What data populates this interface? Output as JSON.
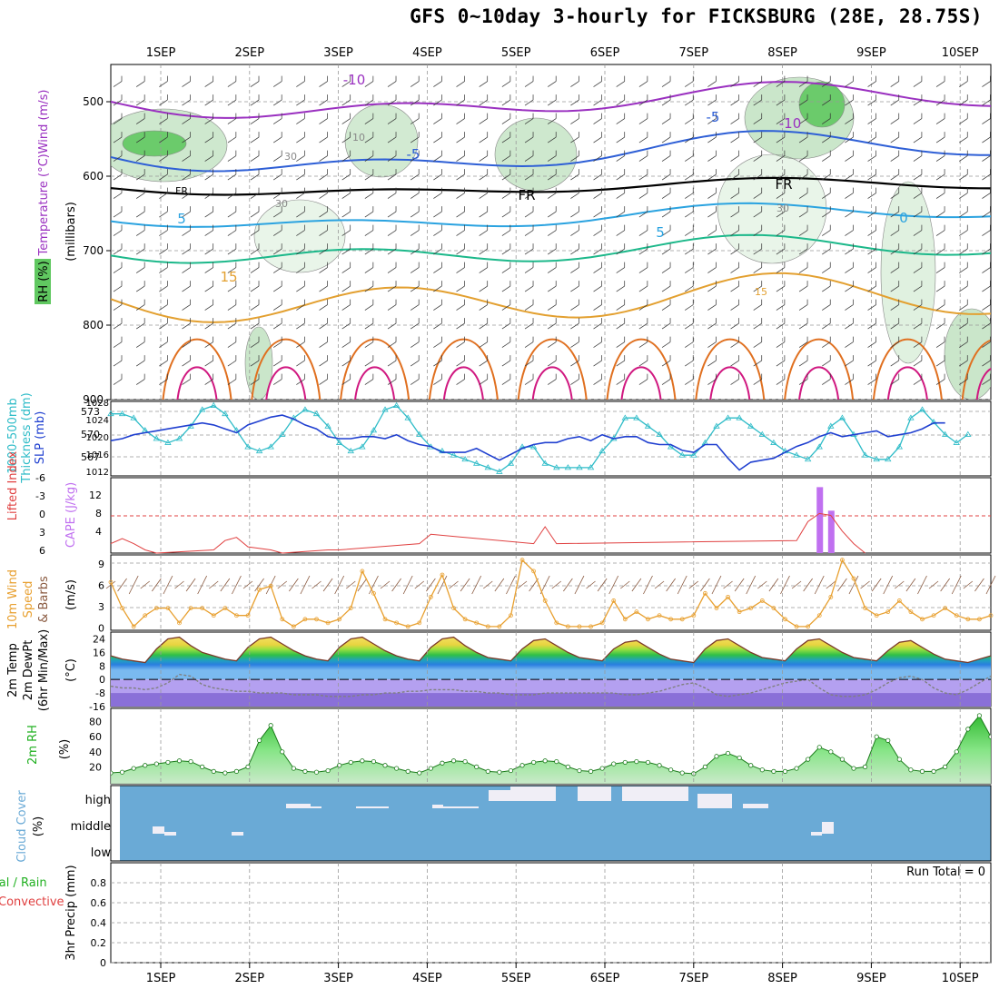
{
  "title": "GFS 0~10day 3-hourly for FICKSBURG (28E, 28.75S)",
  "dates": [
    "1SEP",
    "2SEP",
    "3SEP",
    "4SEP",
    "5SEP",
    "6SEP",
    "7SEP",
    "8SEP",
    "9SEP",
    "10SEP"
  ],
  "colors": {
    "rh_shade": "#a6d6a6",
    "temp_neg10": "#9a30c0",
    "temp_neg5": "#2e5fd6",
    "freezing": "#000000",
    "temp_5": "#2ba3e0",
    "temp_10": "#1cb88a",
    "temp_15": "#e3a030",
    "temp_20": "#e07020",
    "temp_25": "#d01880",
    "thickness": "#2fbcc8",
    "slp": "#2040d0",
    "lifted_index": "#e04040",
    "cape": "#c070f0",
    "wind10m": "#e8a030",
    "temp2m_fill": "#d8c040",
    "dewpt": "#808080",
    "rh2m": "#20b020",
    "cloud_bg": "#6aaad6",
    "cloud_clear": "#f0eef6"
  },
  "panels": {
    "upper": {
      "left_labels": [
        "Temperature (°C)Wind (m/s)",
        "(millibars)",
        "RH (%)"
      ],
      "y_ticks": [
        "500",
        "600",
        "700",
        "800",
        "900"
      ],
      "contour_labels": [
        "-10",
        "-10",
        "-5",
        "-5",
        "FR",
        "FR",
        "FR",
        "5",
        "5",
        "0",
        "15",
        "15",
        "30",
        "30",
        "10",
        "30"
      ]
    },
    "thickness": {
      "left_labels": [
        "1000-500mb",
        "Thickness (dm)",
        "SLP (mb)"
      ],
      "left_ticks": [
        "573",
        "570",
        "567"
      ],
      "right_ticks": [
        "1028",
        "1024",
        "1020",
        "1016",
        "1012"
      ]
    },
    "cape": {
      "left_labels": [
        "Lifted Index",
        "CAPE (J/kg)"
      ],
      "left_ticks": [
        "-6",
        "-3",
        "0",
        "3",
        "6"
      ],
      "right_ticks": [
        "12",
        "8",
        "4"
      ]
    },
    "wind": {
      "left_labels": [
        "10m Wind",
        "Speed",
        "& Barbs",
        "(m/s)"
      ],
      "ticks": [
        "9",
        "6",
        "3",
        "0"
      ]
    },
    "temp": {
      "left_labels": [
        "2m Temp",
        "2m DewPt",
        "(6hr Min/Max)",
        "(°C)"
      ],
      "ticks": [
        "24",
        "16",
        "8",
        "0",
        "-8",
        "-16"
      ]
    },
    "rh": {
      "left_labels": [
        "2m RH",
        "(%)"
      ],
      "ticks": [
        "80",
        "60",
        "40",
        "20"
      ]
    },
    "cloud": {
      "left_labels": [
        "Cloud Cover",
        "(%)"
      ],
      "levels": [
        "high",
        "middle",
        "low"
      ]
    },
    "precip": {
      "left_labels": [
        "Total / Rain",
        "Convective",
        "3hr Precip (mm)"
      ],
      "ticks": [
        "0.8",
        "0.6",
        "0.4",
        "0.2",
        "0"
      ],
      "run_total": "Run Total = 0"
    }
  },
  "chart_data": [
    {
      "type": "line",
      "name": "2m Temp",
      "x": "3-hourly steps from 31 Aug 12Z",
      "values": [
        14,
        12,
        11,
        10,
        18,
        24,
        25,
        20,
        16,
        14,
        12,
        11,
        19,
        24,
        25,
        21,
        17,
        14,
        12,
        11,
        19,
        24,
        25,
        21,
        17,
        14,
        12,
        11,
        19,
        24,
        25,
        20,
        16,
        13,
        12,
        11,
        18,
        23,
        24,
        20,
        16,
        13,
        12,
        11,
        18,
        22,
        23,
        19,
        15,
        12,
        11,
        10,
        18,
        23,
        24,
        20,
        16,
        13,
        12,
        11,
        18,
        23,
        24,
        20,
        16,
        13,
        12,
        11,
        17,
        22,
        23,
        19,
        15,
        12,
        11,
        10,
        12,
        14
      ],
      "ylim": [
        -16,
        28
      ]
    },
    {
      "type": "line",
      "name": "2m DewPt",
      "values": [
        -4,
        -5,
        -5,
        -6,
        -5,
        -2,
        3,
        2,
        -3,
        -5,
        -6,
        -7,
        -7,
        -8,
        -8,
        -8,
        -9,
        -9,
        -9,
        -10,
        -10,
        -10,
        -9,
        -9,
        -8,
        -8,
        -7,
        -7,
        -6,
        -6,
        -6,
        -7,
        -7,
        -8,
        -8,
        -9,
        -9,
        -9,
        -8,
        -8,
        -8,
        -8,
        -8,
        -8,
        -8,
        -9,
        -9,
        -8,
        -7,
        -5,
        -3,
        -2,
        -5,
        -9,
        -10,
        -9,
        -8,
        -6,
        -4,
        -2,
        -1,
        0,
        -5,
        -9,
        -10,
        -10,
        -9,
        -6,
        -2,
        1,
        2,
        0,
        -5,
        -8,
        -9,
        -6,
        -2,
        2
      ]
    },
    {
      "type": "line",
      "name": "2m RH",
      "values": [
        12,
        13,
        18,
        22,
        24,
        26,
        28,
        27,
        20,
        14,
        12,
        14,
        20,
        55,
        75,
        40,
        18,
        14,
        13,
        15,
        22,
        26,
        28,
        27,
        22,
        18,
        14,
        12,
        18,
        25,
        28,
        27,
        20,
        14,
        13,
        15,
        22,
        26,
        28,
        27,
        20,
        15,
        14,
        18,
        24,
        26,
        27,
        26,
        22,
        16,
        12,
        11,
        20,
        34,
        38,
        32,
        22,
        16,
        14,
        14,
        18,
        30,
        46,
        40,
        30,
        18,
        20,
        60,
        55,
        30,
        16,
        14,
        14,
        20,
        40,
        70,
        88,
        60
      ],
      "ylim": [
        0,
        100
      ]
    },
    {
      "type": "line",
      "name": "10m Wind Speed",
      "values": [
        6.5,
        3,
        0.5,
        2,
        3,
        3,
        1,
        3,
        3,
        2,
        3,
        2,
        2,
        5.5,
        6,
        1.5,
        0.5,
        1.5,
        1.5,
        1,
        1.5,
        3,
        8,
        5,
        1.5,
        1,
        0.5,
        1,
        4.5,
        7.5,
        3,
        1.5,
        1,
        0.5,
        0.5,
        2,
        9.5,
        8,
        4,
        1,
        0.5,
        0.5,
        0.5,
        1,
        4,
        1.5,
        2.5,
        1.5,
        2,
        1.5,
        1.5,
        2,
        5,
        3,
        4.5,
        2.5,
        3,
        4,
        3,
        1.5,
        0.5,
        0.5,
        2,
        4.5,
        9.5,
        7,
        3,
        2,
        2.5,
        4,
        2.5,
        1.5,
        2,
        3,
        2,
        1.5,
        1.5,
        2
      ],
      "ylim": [
        0,
        10
      ]
    },
    {
      "type": "line",
      "name": "1000-500mb Thickness",
      "values": [
        572.5,
        572.5,
        572,
        570.5,
        569.5,
        569,
        569.5,
        571,
        573,
        573.5,
        572.5,
        570.5,
        568.5,
        568,
        568.5,
        570,
        572,
        573,
        572.5,
        571,
        569,
        568,
        568.5,
        570.5,
        573,
        573.5,
        572,
        570,
        568.5,
        568,
        567.5,
        567,
        566.5,
        566,
        565.5,
        566.5,
        568.5,
        568.5,
        566.5,
        566,
        566,
        566,
        566,
        568,
        569.5,
        572,
        572,
        571,
        570,
        568.5,
        567.5,
        567.5,
        569,
        571,
        572,
        572,
        571,
        570,
        569,
        568,
        567.5,
        567,
        568.5,
        571,
        572,
        570,
        567.5,
        567,
        567,
        568.5,
        572,
        573,
        571.5,
        570,
        569,
        570
      ],
      "ylim": [
        565,
        574
      ]
    },
    {
      "type": "line",
      "name": "SLP",
      "values": [
        1020,
        1020.5,
        1021.5,
        1022,
        1022.5,
        1023,
        1023.5,
        1024,
        1024.5,
        1024,
        1023,
        1022,
        1024,
        1025,
        1026,
        1026.5,
        1025.5,
        1024,
        1023,
        1021,
        1020.5,
        1020.5,
        1021,
        1021,
        1020.5,
        1021.5,
        1020,
        1019,
        1018.5,
        1017,
        1017,
        1017,
        1018,
        1016.5,
        1015,
        1016.5,
        1018,
        1019,
        1019.5,
        1019.5,
        1020.5,
        1021,
        1020,
        1021.5,
        1020.5,
        1021,
        1021,
        1019.5,
        1019,
        1019,
        1017.5,
        1017,
        1019,
        1019,
        1015.5,
        1012.5,
        1014.5,
        1015,
        1015.5,
        1017,
        1018.5,
        1019.5,
        1021,
        1022,
        1021,
        1021.5,
        1022,
        1022.5,
        1021,
        1021.5,
        1022,
        1023,
        1024.5,
        1024.5
      ],
      "ylim": [
        1011,
        1030
      ]
    },
    {
      "type": "bar",
      "name": "CAPE",
      "x_steps": [
        62,
        63
      ],
      "values": [
        14,
        9
      ],
      "ylim": [
        0,
        16
      ]
    },
    {
      "type": "line",
      "name": "Lifted Index",
      "points": [
        [
          0,
          4.5
        ],
        [
          1,
          3.7
        ],
        [
          2,
          4.5
        ],
        [
          3,
          5.5
        ],
        [
          4,
          6
        ],
        [
          9,
          5.5
        ],
        [
          10,
          4
        ],
        [
          11,
          3.5
        ],
        [
          12,
          5
        ],
        [
          14,
          5.5
        ],
        [
          15,
          6
        ],
        [
          19,
          5.5
        ],
        [
          20,
          5.5
        ],
        [
          27,
          4.5
        ],
        [
          28,
          3
        ],
        [
          37,
          4.5
        ],
        [
          38,
          1.8
        ],
        [
          39,
          4.5
        ],
        [
          60,
          4
        ],
        [
          61,
          1
        ],
        [
          62,
          -0.3
        ],
        [
          63,
          0
        ],
        [
          64,
          2.5
        ],
        [
          65,
          4.5
        ],
        [
          66,
          6
        ]
      ],
      "ylim": [
        6,
        -6
      ]
    }
  ]
}
